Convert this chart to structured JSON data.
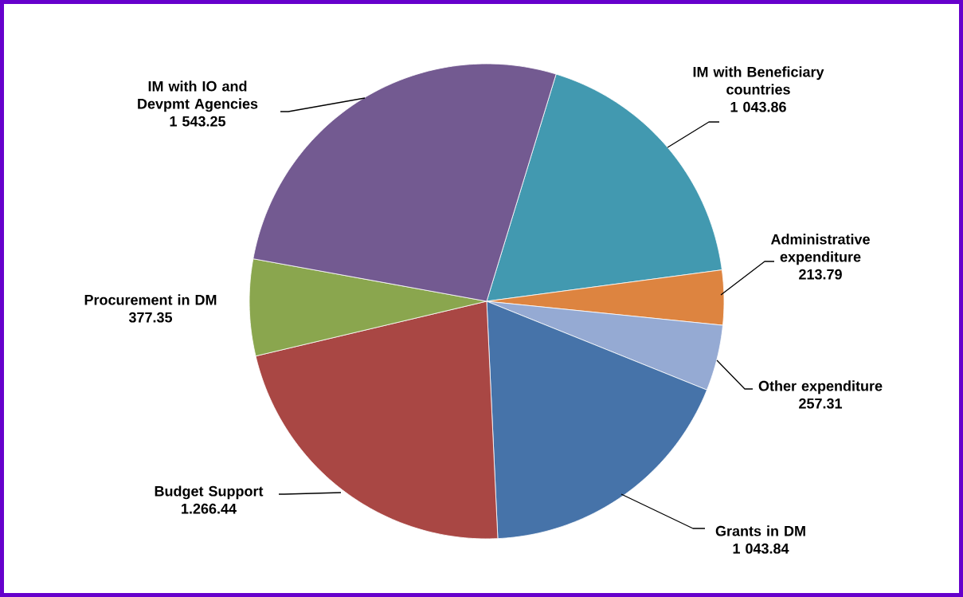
{
  "chart_data": {
    "type": "pie",
    "categories": [
      "IM with Beneficiary countries",
      "Administrative expenditure",
      "Other expenditure",
      "Grants in DM",
      "Budget Support",
      "Procurement in DM",
      "IM with IO and Devpmt Agencies"
    ],
    "values": [
      1043.86,
      213.79,
      257.31,
      1043.84,
      1266.44,
      377.35,
      1543.25
    ],
    "value_labels": [
      "1 043.86",
      "213.79",
      "257.31",
      "1 043.84",
      "1.266.44",
      "377.35",
      "1 543.25"
    ],
    "colors": [
      "#4299b0",
      "#dd8440",
      "#95aad3",
      "#4673a9",
      "#a94744",
      "#8aa64e",
      "#735a91"
    ]
  }
}
